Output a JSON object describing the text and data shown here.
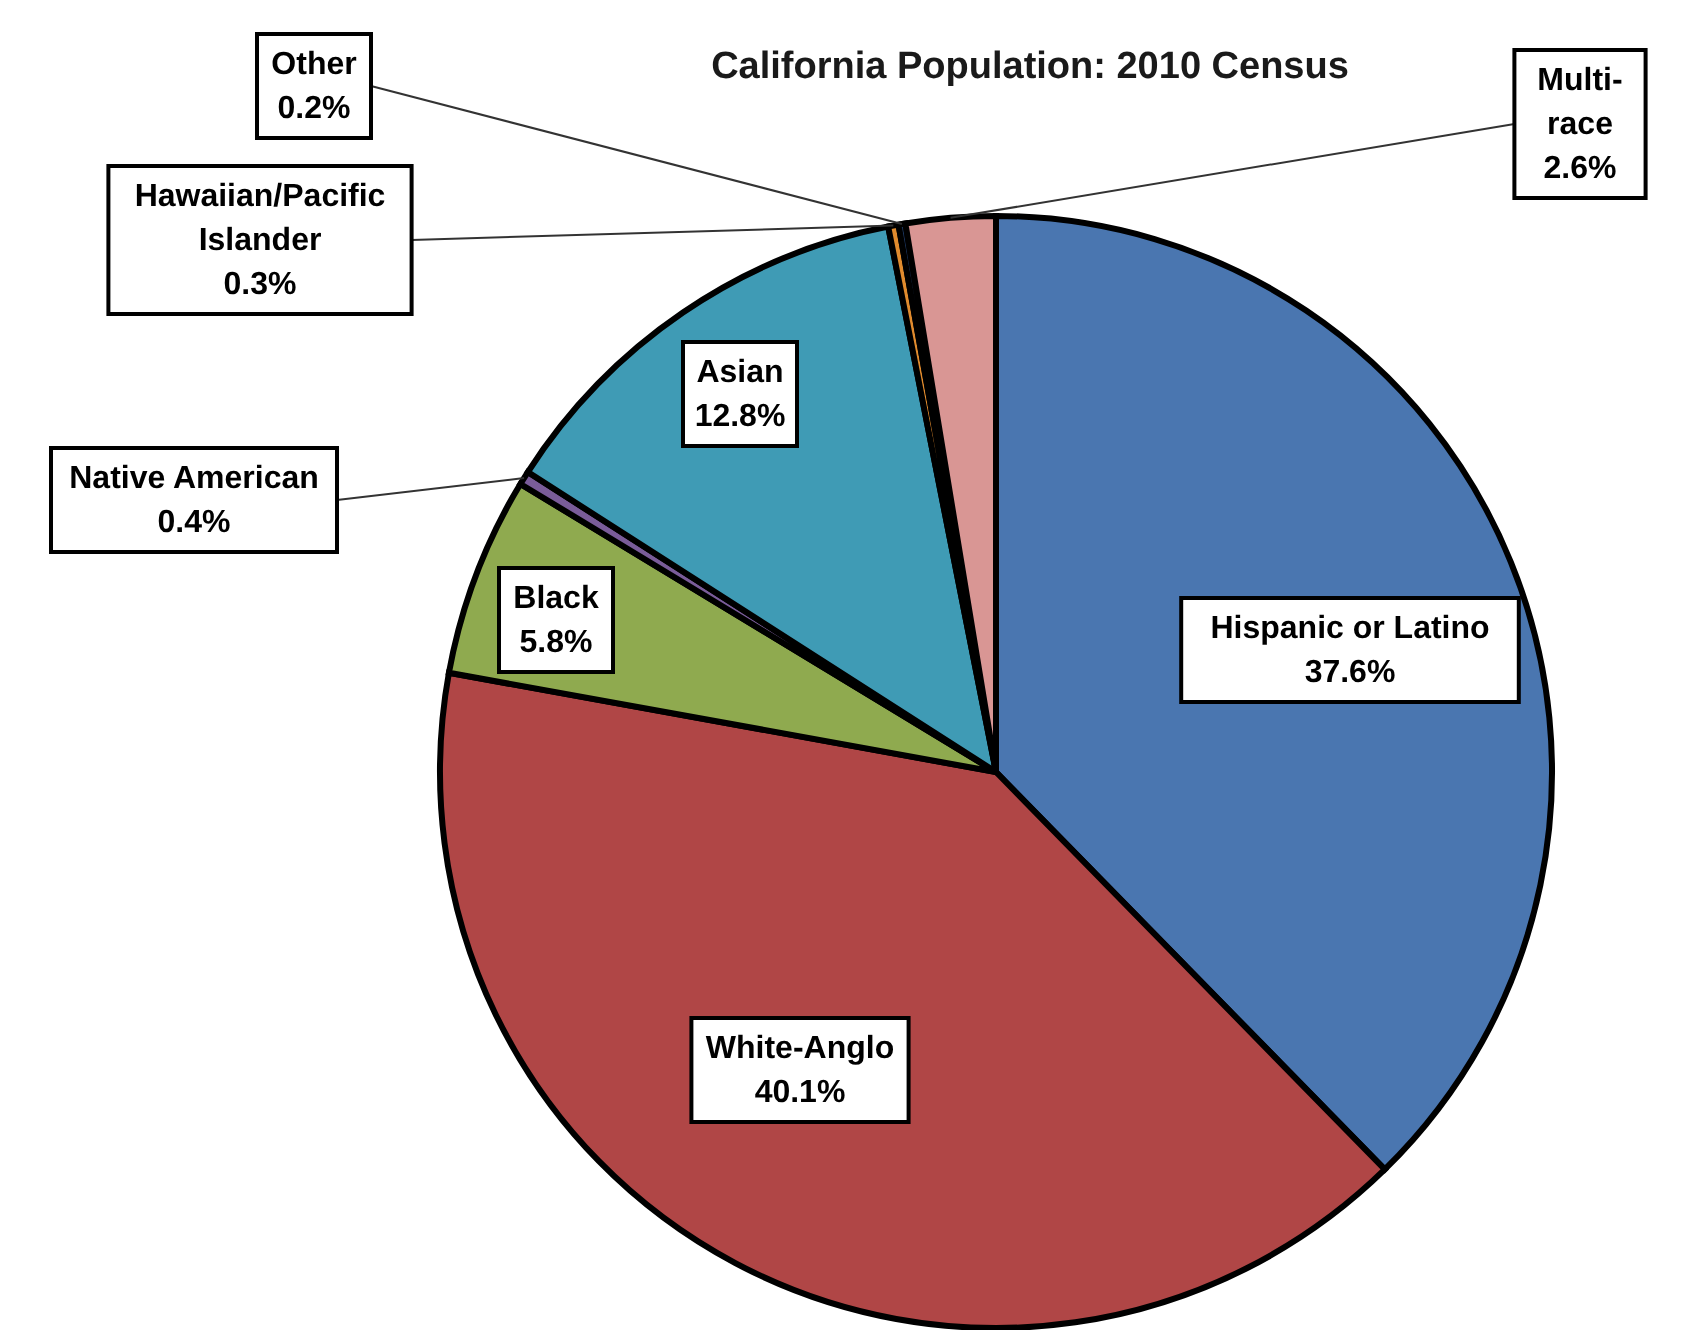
{
  "chart_data": {
    "type": "pie",
    "title": "California Population: 2010 Census",
    "categories": [
      "Hispanic or Latino",
      "White-Anglo",
      "Black",
      "Native American",
      "Asian",
      "Hawaiian/Pacific Islander",
      "Other",
      "Multi-race"
    ],
    "values": [
      37.6,
      40.1,
      5.8,
      0.4,
      12.8,
      0.3,
      0.2,
      2.6
    ],
    "value_labels": [
      "37.6%",
      "40.1%",
      "5.8%",
      "0.4%",
      "12.8%",
      "0.3%",
      "0.2%",
      "2.6%"
    ],
    "colors": [
      "#4a76b0",
      "#b04646",
      "#8faa4f",
      "#7a5c99",
      "#3f9bb5",
      "#e08b2e",
      "#1f3d6b",
      "#d99694"
    ]
  }
}
